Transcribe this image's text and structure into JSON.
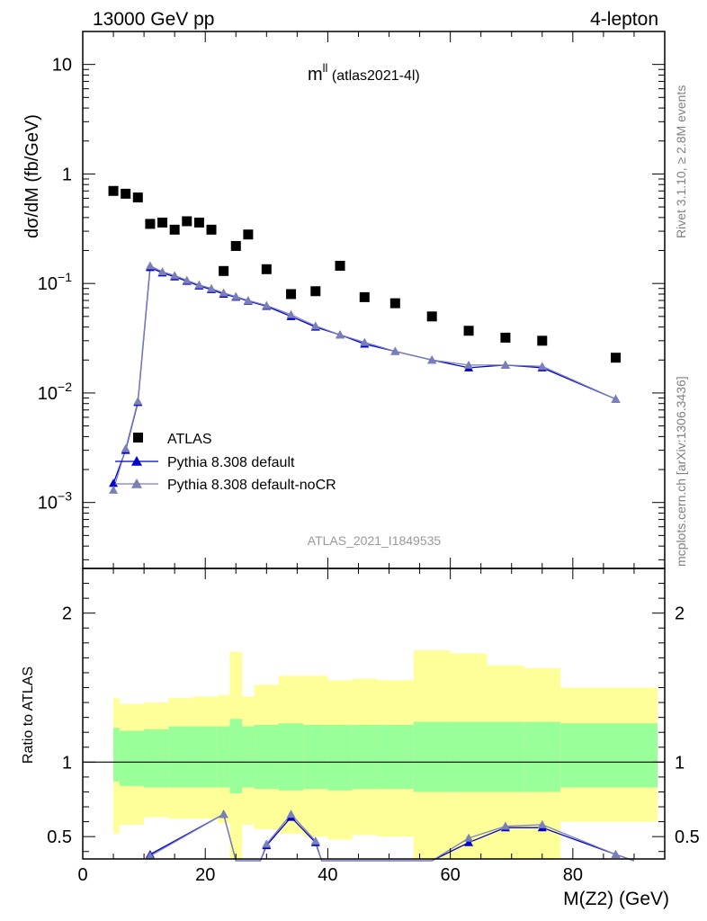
{
  "header": {
    "left": "13000 GeV pp",
    "right": "4-lepton"
  },
  "plot_title": {
    "main": "m",
    "sup": "ll",
    "sub": " (atlas2021-4l)"
  },
  "side_texts": {
    "rivet": "Rivet 3.1.10, ≥ 2.8M events",
    "mcplots": "mcplots.cern.ch [arXiv:1306.3436]"
  },
  "watermark": "ATLAS_2021_I1849535",
  "colors": {
    "data": "#000000",
    "default": "#0000cc",
    "nocr": "#7a7fb8",
    "band_inner": "#99ff99",
    "band_outer": "#ffff99"
  },
  "chart_data": [
    {
      "type": "scatter",
      "panel": "main",
      "ylabel": "dσ/dM (fb/GeV)",
      "yscale": "log",
      "ylim": [
        0.00025,
        20
      ],
      "xlim": [
        0,
        95
      ],
      "y_ticks": [
        {
          "value": 10,
          "label": "10"
        },
        {
          "value": 1,
          "label": "1"
        },
        {
          "value": 0.1,
          "label": "10",
          "exp": "−1"
        },
        {
          "value": 0.01,
          "label": "10",
          "exp": "−2"
        },
        {
          "value": 0.001,
          "label": "10",
          "exp": "−3"
        }
      ],
      "legend_position": "lower-left",
      "series": [
        {
          "name": "ATLAS",
          "marker": "square",
          "points": [
            [
              5,
              0.7
            ],
            [
              7,
              0.66
            ],
            [
              9,
              0.61
            ],
            [
              11,
              0.35
            ],
            [
              13,
              0.36
            ],
            [
              15,
              0.31
            ],
            [
              17,
              0.37
            ],
            [
              19,
              0.36
            ],
            [
              21,
              0.31
            ],
            [
              23,
              0.13
            ],
            [
              25,
              0.22
            ],
            [
              27,
              0.28
            ],
            [
              30,
              0.135
            ],
            [
              34,
              0.08
            ],
            [
              38,
              0.085
            ],
            [
              42,
              0.145
            ],
            [
              46,
              0.075
            ],
            [
              51,
              0.066
            ],
            [
              57,
              0.05
            ],
            [
              63,
              0.037
            ],
            [
              69,
              0.032
            ],
            [
              75,
              0.03
            ],
            [
              87,
              0.021
            ]
          ]
        },
        {
          "name": "Pythia 8.308 default",
          "marker": "triangle",
          "points": [
            [
              5,
              0.0015
            ],
            [
              7,
              0.003
            ],
            [
              9,
              0.0082
            ],
            [
              11,
              0.14
            ],
            [
              13,
              0.125
            ],
            [
              15,
              0.115
            ],
            [
              17,
              0.105
            ],
            [
              19,
              0.095
            ],
            [
              21,
              0.088
            ],
            [
              23,
              0.08
            ],
            [
              25,
              0.075
            ],
            [
              27,
              0.069
            ],
            [
              30,
              0.062
            ],
            [
              34,
              0.05
            ],
            [
              38,
              0.04
            ],
            [
              42,
              0.034
            ],
            [
              46,
              0.028
            ],
            [
              51,
              0.024
            ],
            [
              57,
              0.02
            ],
            [
              63,
              0.017
            ],
            [
              69,
              0.018
            ],
            [
              75,
              0.017
            ],
            [
              87,
              0.0088
            ]
          ]
        },
        {
          "name": "Pythia 8.308 default-noCR",
          "marker": "triangle",
          "points": [
            [
              5,
              0.0013
            ],
            [
              7,
              0.0031
            ],
            [
              9,
              0.0084
            ],
            [
              11,
              0.145
            ],
            [
              13,
              0.128
            ],
            [
              15,
              0.118
            ],
            [
              17,
              0.107
            ],
            [
              19,
              0.097
            ],
            [
              21,
              0.09
            ],
            [
              23,
              0.082
            ],
            [
              25,
              0.076
            ],
            [
              27,
              0.07
            ],
            [
              30,
              0.063
            ],
            [
              34,
              0.052
            ],
            [
              38,
              0.041
            ],
            [
              42,
              0.034
            ],
            [
              46,
              0.029
            ],
            [
              51,
              0.024
            ],
            [
              57,
              0.02
            ],
            [
              63,
              0.018
            ],
            [
              69,
              0.018
            ],
            [
              75,
              0.0175
            ],
            [
              87,
              0.0088
            ]
          ]
        }
      ]
    },
    {
      "type": "line",
      "panel": "ratio",
      "xlabel": "M(Z2) (GeV)",
      "ylabel": "Ratio to ATLAS",
      "ylim": [
        0.35,
        2.3
      ],
      "xlim": [
        0,
        95
      ],
      "x_ticks": [
        0,
        20,
        40,
        60,
        80
      ],
      "y_ticks": [
        0.5,
        1,
        2
      ],
      "reference_line": 1,
      "bands": {
        "edges": [
          5,
          6,
          10,
          14,
          18,
          22,
          24,
          26,
          28,
          32,
          36,
          40,
          44,
          48,
          54,
          60,
          66,
          72,
          78,
          96
        ],
        "inner_low": [
          0.87,
          0.84,
          0.83,
          0.83,
          0.83,
          0.83,
          0.79,
          0.83,
          0.82,
          0.81,
          0.82,
          0.81,
          0.82,
          0.82,
          0.8,
          0.8,
          0.8,
          0.8,
          0.83
        ],
        "inner_high": [
          1.23,
          1.21,
          1.22,
          1.24,
          1.24,
          1.24,
          1.29,
          1.24,
          1.25,
          1.26,
          1.25,
          1.25,
          1.25,
          1.25,
          1.27,
          1.27,
          1.27,
          1.27,
          1.26
        ],
        "outer_low": [
          0.52,
          0.58,
          0.63,
          0.62,
          0.62,
          0.59,
          0.12,
          0.58,
          0.55,
          0.52,
          0.5,
          0.48,
          0.51,
          0.5,
          0.22,
          0.27,
          0.3,
          0.3,
          0.6
        ],
        "outer_high": [
          1.43,
          1.39,
          1.4,
          1.43,
          1.44,
          1.45,
          1.74,
          1.44,
          1.52,
          1.58,
          1.58,
          1.55,
          1.56,
          1.55,
          1.75,
          1.73,
          1.65,
          1.63,
          1.5
        ]
      },
      "series": [
        {
          "name": "Pythia 8.308 default",
          "points": [
            [
              11,
              0.38
            ],
            [
              23,
              0.65
            ],
            [
              25,
              0.32
            ],
            [
              29,
              0.32
            ],
            [
              30,
              0.44
            ],
            [
              34,
              0.63
            ],
            [
              38,
              0.46
            ],
            [
              39,
              0.3
            ],
            [
              57,
              0.3
            ],
            [
              63,
              0.46
            ],
            [
              69,
              0.56
            ],
            [
              75,
              0.56
            ],
            [
              87,
              0.38
            ],
            [
              90,
              0.3
            ]
          ]
        },
        {
          "name": "Pythia 8.308 default-noCR",
          "points": [
            [
              11,
              0.37
            ],
            [
              23,
              0.65
            ],
            [
              25,
              0.32
            ],
            [
              29,
              0.32
            ],
            [
              30,
              0.45
            ],
            [
              34,
              0.65
            ],
            [
              38,
              0.47
            ],
            [
              39,
              0.3
            ],
            [
              57,
              0.32
            ],
            [
              63,
              0.49
            ],
            [
              69,
              0.57
            ],
            [
              75,
              0.58
            ],
            [
              87,
              0.38
            ],
            [
              90,
              0.3
            ]
          ]
        }
      ]
    }
  ]
}
